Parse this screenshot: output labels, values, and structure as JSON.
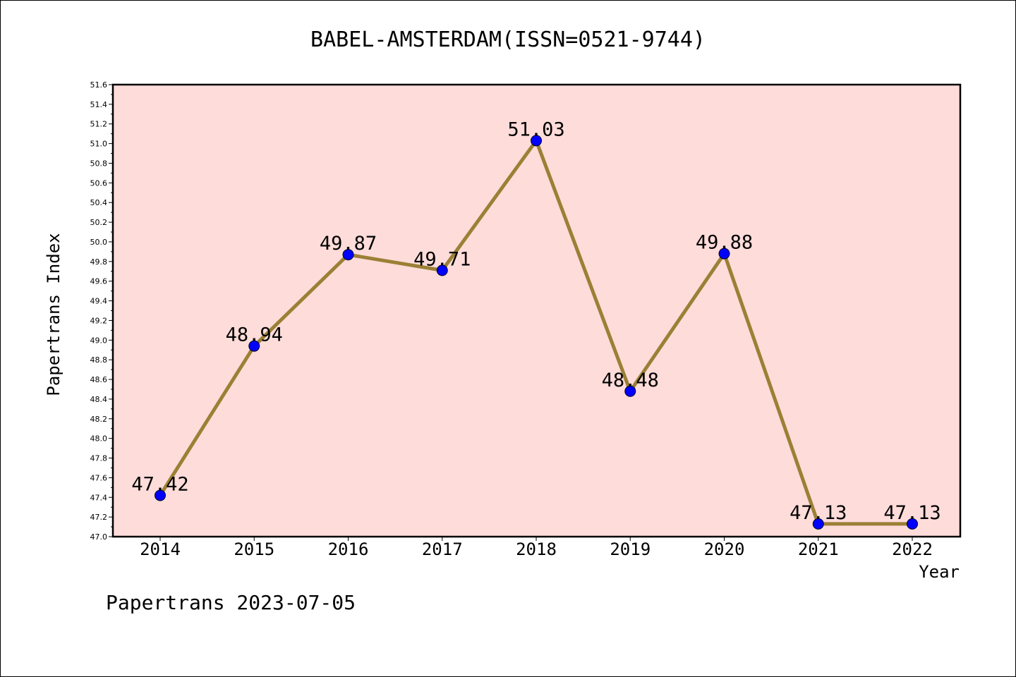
{
  "chart_data": {
    "type": "line",
    "title": "BABEL-AMSTERDAM(ISSN=0521-9744)",
    "xlabel": "Year",
    "ylabel": "Papertrans Index",
    "categories": [
      "2014",
      "2015",
      "2016",
      "2017",
      "2018",
      "2019",
      "2020",
      "2021",
      "2022"
    ],
    "values": [
      47.42,
      48.94,
      49.87,
      49.71,
      51.03,
      48.48,
      49.88,
      47.13,
      47.13
    ],
    "data_labels": [
      "47.42",
      "48.94",
      "49.87",
      "49.71",
      "51.03",
      "48.48",
      "49.88",
      "47.13",
      "47.13"
    ],
    "ylim": [
      47.0,
      51.6
    ],
    "yticks": [
      "47.0",
      "47.2",
      "47.4",
      "47.6",
      "47.8",
      "48.0",
      "48.2",
      "48.4",
      "48.6",
      "48.8",
      "49.0",
      "49.2",
      "49.4",
      "49.6",
      "49.8",
      "50.0",
      "50.2",
      "50.4",
      "50.6",
      "50.8",
      "51.0",
      "51.2",
      "51.4",
      "51.6"
    ],
    "grid": false,
    "colors": {
      "plot_background": "#fddcda",
      "line": "#9b8035",
      "marker": "#0000ff"
    }
  },
  "footer": "Papertrans 2023-07-05"
}
